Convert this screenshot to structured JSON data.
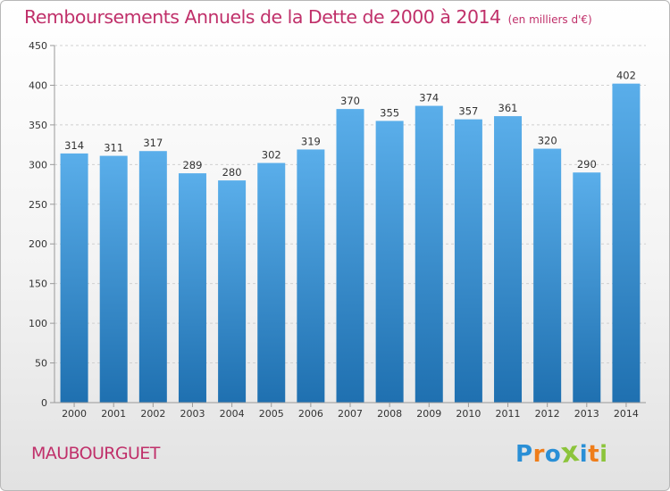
{
  "header": {
    "title": "Remboursements Annuels de la Dette de 2000 à 2014",
    "unit": "(en milliers d'€)"
  },
  "footer": {
    "commune": "MAUBOURGUET",
    "logo_text": "Proxiti"
  },
  "colors": {
    "title": "#c0306a",
    "bar_top": "#5aaeea",
    "bar_bottom": "#1f70b0",
    "grid": "#d0d0d0",
    "axis": "#999999",
    "text": "#333333",
    "logo": [
      "#2a8fd6",
      "#ef7d1a",
      "#2a8fd6",
      "#8cc43b",
      "#2a8fd6",
      "#ef7d1a",
      "#8cc43b"
    ]
  },
  "chart_data": {
    "type": "bar",
    "title": "Remboursements Annuels de la Dette de 2000 à 2014",
    "xlabel": "",
    "ylabel": "(en milliers d'€)",
    "categories": [
      "2000",
      "2001",
      "2002",
      "2003",
      "2004",
      "2005",
      "2006",
      "2007",
      "2008",
      "2009",
      "2010",
      "2011",
      "2012",
      "2013",
      "2014"
    ],
    "values": [
      314,
      311,
      317,
      289,
      280,
      302,
      319,
      370,
      355,
      374,
      357,
      361,
      320,
      290,
      402
    ],
    "ylim": [
      0,
      450
    ],
    "yticks": [
      0,
      50,
      100,
      150,
      200,
      250,
      300,
      350,
      400,
      450
    ],
    "grid": true,
    "legend": "none"
  }
}
